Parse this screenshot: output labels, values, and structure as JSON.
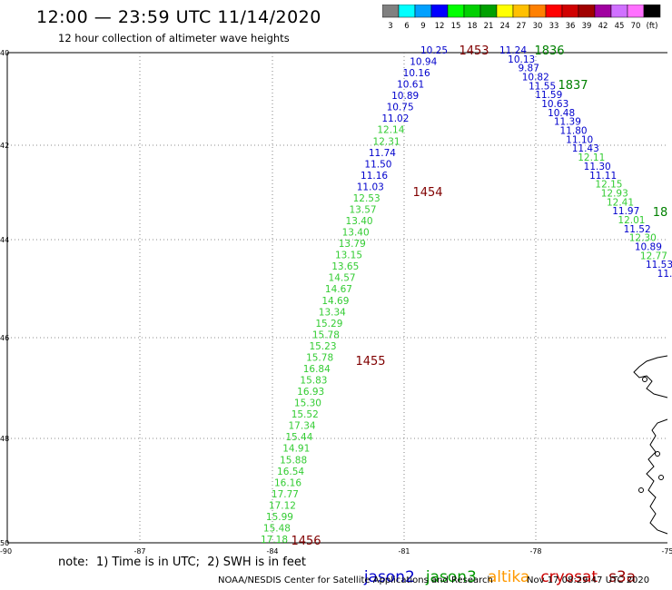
{
  "header": {
    "title": "12:00 — 23:59 UTC 11/14/2020",
    "subtitle": "12 hour collection of altimeter wave heights"
  },
  "color_scale": {
    "labels": [
      "3",
      "6",
      "9",
      "12",
      "15",
      "18",
      "21",
      "24",
      "27",
      "30",
      "33",
      "36",
      "39",
      "42",
      "45",
      "70",
      "(ft)"
    ],
    "colors": [
      "#808080",
      "#00ffff",
      "#00a0ff",
      "#0000ff",
      "#00ff00",
      "#00d000",
      "#00a000",
      "#ffff00",
      "#ffc000",
      "#ff8000",
      "#ff0000",
      "#d00000",
      "#a00000",
      "#a000a0",
      "#d070ff",
      "#ff70ff",
      "#000000"
    ]
  },
  "axes": {
    "lat_ticks": [
      "40",
      "42",
      "44",
      "46",
      "48",
      "50"
    ],
    "lon_ticks": [
      "-90",
      "-87",
      "-84",
      "-81",
      "-78",
      "-75"
    ]
  },
  "tracks": {
    "track_a": [
      {
        "text": "10.25",
        "color": "#0000cc"
      },
      {
        "text": "10.94",
        "color": "#0000cc"
      },
      {
        "text": "10.16",
        "color": "#0000cc"
      },
      {
        "text": "10.61",
        "color": "#0000cc"
      },
      {
        "text": "10.89",
        "color": "#0000cc"
      },
      {
        "text": "10.75",
        "color": "#0000cc"
      },
      {
        "text": "11.02",
        "color": "#0000cc"
      },
      {
        "text": "12.14",
        "color": "#33cc33"
      },
      {
        "text": "12.31",
        "color": "#33cc33"
      },
      {
        "text": "11.74",
        "color": "#0000cc"
      },
      {
        "text": "11.50",
        "color": "#0000cc"
      },
      {
        "text": "11.16",
        "color": "#0000cc"
      },
      {
        "text": "11.03",
        "color": "#0000cc"
      },
      {
        "text": "12.53",
        "color": "#33cc33"
      },
      {
        "text": "13.57",
        "color": "#33cc33"
      },
      {
        "text": "13.40",
        "color": "#33cc33"
      },
      {
        "text": "13.40",
        "color": "#33cc33"
      },
      {
        "text": "13.79",
        "color": "#33cc33"
      },
      {
        "text": "13.15",
        "color": "#33cc33"
      },
      {
        "text": "13.65",
        "color": "#33cc33"
      },
      {
        "text": "14.57",
        "color": "#33cc33"
      },
      {
        "text": "14.67",
        "color": "#33cc33"
      },
      {
        "text": "14.69",
        "color": "#33cc33"
      },
      {
        "text": "13.34",
        "color": "#33cc33"
      },
      {
        "text": "15.29",
        "color": "#33cc33"
      },
      {
        "text": "15.78",
        "color": "#33cc33"
      },
      {
        "text": "15.23",
        "color": "#33cc33"
      },
      {
        "text": "15.78",
        "color": "#33cc33"
      },
      {
        "text": "16.84",
        "color": "#33cc33"
      },
      {
        "text": "15.83",
        "color": "#33cc33"
      },
      {
        "text": "16.93",
        "color": "#33cc33"
      },
      {
        "text": "15.30",
        "color": "#33cc33"
      },
      {
        "text": "15.52",
        "color": "#33cc33"
      },
      {
        "text": "17.34",
        "color": "#33cc33"
      },
      {
        "text": "15.44",
        "color": "#33cc33"
      },
      {
        "text": "14.91",
        "color": "#33cc33"
      },
      {
        "text": "15.88",
        "color": "#33cc33"
      },
      {
        "text": "16.54",
        "color": "#33cc33"
      },
      {
        "text": "16.16",
        "color": "#33cc33"
      },
      {
        "text": "17.77",
        "color": "#33cc33"
      },
      {
        "text": "17.12",
        "color": "#33cc33"
      },
      {
        "text": "15.99",
        "color": "#33cc33"
      },
      {
        "text": "15.48",
        "color": "#33cc33"
      },
      {
        "text": "17.18",
        "color": "#33cc33"
      }
    ],
    "track_b": [
      {
        "text": "11.24",
        "color": "#0000cc"
      },
      {
        "text": "10.13",
        "color": "#0000cc"
      },
      {
        "text": "9.87",
        "color": "#0000cc"
      },
      {
        "text": "10.82",
        "color": "#0000cc"
      },
      {
        "text": "11.55",
        "color": "#0000cc"
      },
      {
        "text": "11.59",
        "color": "#0000cc"
      },
      {
        "text": "10.63",
        "color": "#0000cc"
      },
      {
        "text": "10.48",
        "color": "#0000cc"
      },
      {
        "text": "11.39",
        "color": "#0000cc"
      },
      {
        "text": "11.80",
        "color": "#0000cc"
      },
      {
        "text": "11.10",
        "color": "#0000cc"
      },
      {
        "text": "11.43",
        "color": "#0000cc"
      },
      {
        "text": "12.11",
        "color": "#33cc33"
      },
      {
        "text": "11.30",
        "color": "#0000cc"
      },
      {
        "text": "11.11",
        "color": "#0000cc"
      },
      {
        "text": "12.15",
        "color": "#33cc33"
      },
      {
        "text": "12.93",
        "color": "#33cc33"
      },
      {
        "text": "12.41",
        "color": "#33cc33"
      },
      {
        "text": "11.97",
        "color": "#0000cc"
      },
      {
        "text": "12.01",
        "color": "#33cc33"
      },
      {
        "text": "11.52",
        "color": "#0000cc"
      },
      {
        "text": "12.30",
        "color": "#33cc33"
      },
      {
        "text": "10.89",
        "color": "#0000cc"
      },
      {
        "text": "12.77",
        "color": "#33cc33"
      },
      {
        "text": "11.53",
        "color": "#0000cc"
      },
      {
        "text": "11.",
        "color": "#0000cc"
      }
    ]
  },
  "time_labels": [
    {
      "text": "1453",
      "color": "#800000"
    },
    {
      "text": "1454",
      "color": "#800000"
    },
    {
      "text": "1455",
      "color": "#800000"
    },
    {
      "text": "1456",
      "color": "#800000"
    },
    {
      "text": "1836",
      "color": "#008000"
    },
    {
      "text": "1837",
      "color": "#008000"
    },
    {
      "text": "18",
      "color": "#008000"
    }
  ],
  "footer": {
    "note": "note:  1) Time is in UTC;  2) SWH is in feet",
    "satellites": [
      {
        "name": "jason2",
        "color": "#0000cc"
      },
      {
        "name": "jason3",
        "color": "#009900"
      },
      {
        "name": "altika",
        "color": "#ff9900"
      },
      {
        "name": "cryosat",
        "color": "#cc0000"
      },
      {
        "name": "s3a",
        "color": "#990000"
      }
    ],
    "credit": "NOAA/NESDIS Center for Satellite Applications and Research",
    "timestamp": "Nov 17 08:29:47 UTC 2020"
  }
}
